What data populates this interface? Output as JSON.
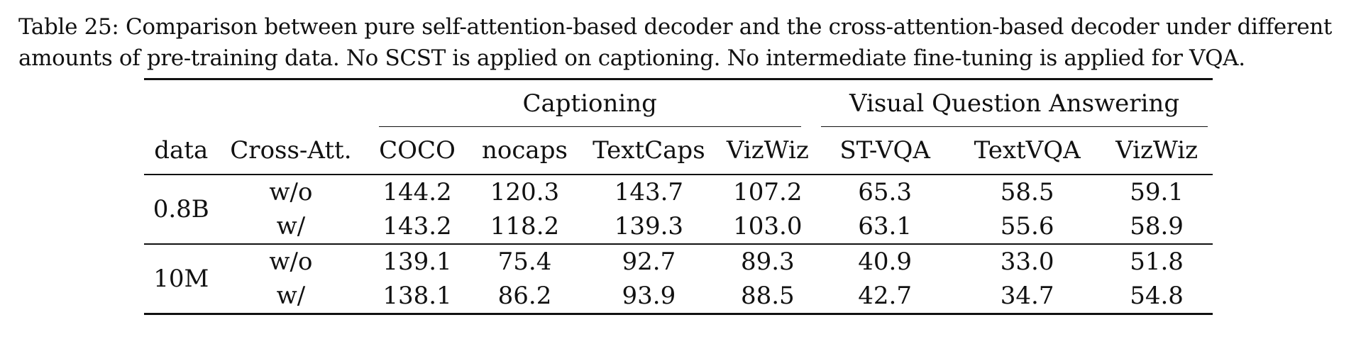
{
  "caption": {
    "line1": "Table 25: Comparison between pure self-attention-based decoder and the cross-attention-based decoder under different",
    "line2": "amounts of pre-training data. No SCST is applied on captioning. No intermediate fine-tuning is applied for VQA."
  },
  "table": {
    "group_captioning": "Captioning",
    "group_vqa": "Visual Question Answering",
    "headers": [
      "data",
      "Cross-Att.",
      "COCO",
      "nocaps",
      "TextCaps",
      "VizWiz",
      "ST-VQA",
      "TextVQA",
      "VizWiz"
    ],
    "blocks": [
      {
        "data": "0.8B",
        "rows": [
          {
            "cross_att": "w/o",
            "values": [
              "144.2",
              "120.3",
              "143.7",
              "107.2",
              "65.3",
              "58.5",
              "59.1"
            ],
            "bold": [
              true,
              true,
              true,
              true,
              true,
              true,
              true
            ]
          },
          {
            "cross_att": "w/",
            "values": [
              "143.2",
              "118.2",
              "139.3",
              "103.0",
              "63.1",
              "55.6",
              "58.9"
            ],
            "bold": [
              false,
              false,
              false,
              false,
              false,
              false,
              false
            ]
          }
        ]
      },
      {
        "data": "10M",
        "rows": [
          {
            "cross_att": "w/o",
            "values": [
              "139.1",
              "75.4",
              "92.7",
              "89.3",
              "40.9",
              "33.0",
              "51.8"
            ],
            "bold": [
              true,
              false,
              false,
              true,
              false,
              false,
              false
            ]
          },
          {
            "cross_att": "w/",
            "values": [
              "138.1",
              "86.2",
              "93.9",
              "88.5",
              "42.7",
              "34.7",
              "54.8"
            ],
            "bold": [
              false,
              true,
              true,
              false,
              true,
              true,
              true
            ]
          }
        ]
      }
    ]
  }
}
